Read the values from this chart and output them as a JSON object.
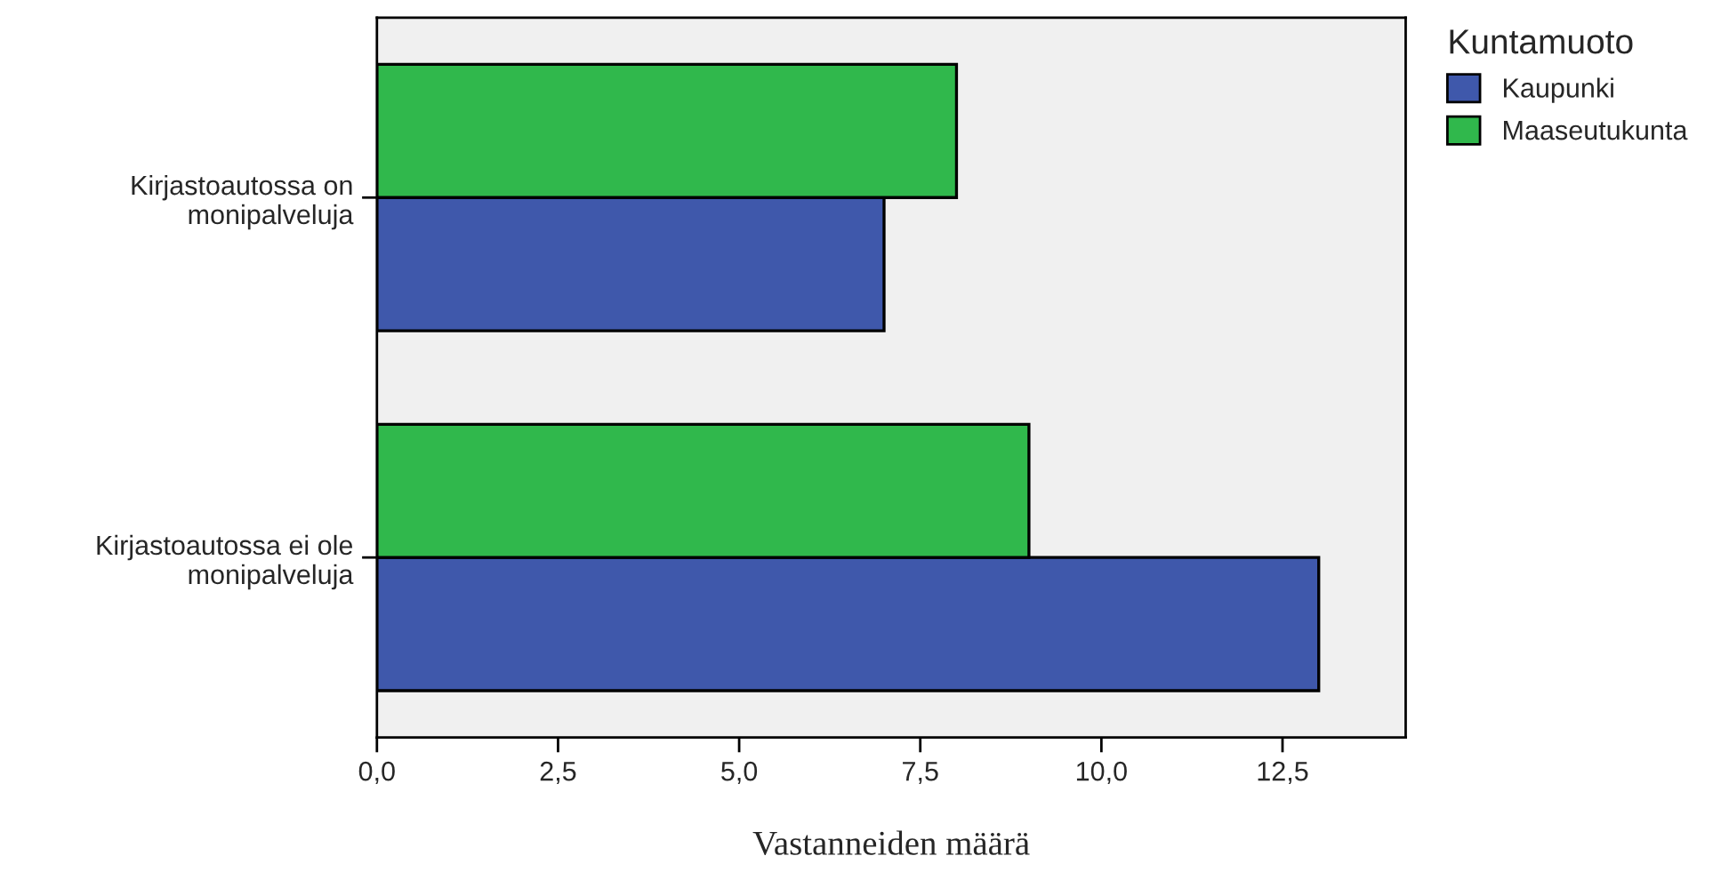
{
  "chart_data": {
    "type": "bar",
    "orientation": "horizontal",
    "categories": [
      "Kirjastoautossa on\nmonipalveluja",
      "Kirjastoautossa ei ole\nmonipalveluja"
    ],
    "series": [
      {
        "name": "Kaupunki",
        "color": "#3f58ab",
        "values": [
          7,
          13
        ]
      },
      {
        "name": "Maaseutukunta",
        "color": "#30b84c",
        "values": [
          8,
          9
        ]
      }
    ],
    "xlabel": "Vastanneiden määrä",
    "legend_title": "Kuntamuoto",
    "legend": "right",
    "xlim": [
      0,
      14.2
    ],
    "xticks": [
      {
        "value": 0,
        "label": "0,0"
      },
      {
        "value": 2.5,
        "label": "2,5"
      },
      {
        "value": 5,
        "label": "5,0"
      },
      {
        "value": 7.5,
        "label": "7,5"
      },
      {
        "value": 10,
        "label": "10,0"
      },
      {
        "value": 12.5,
        "label": "12,5"
      }
    ],
    "grid": false
  }
}
